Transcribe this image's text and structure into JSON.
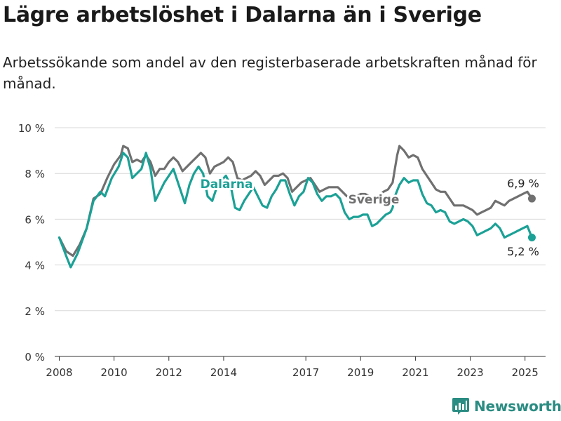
{
  "header": {
    "title": "Lägre arbetslöshet i Dalarna än i Sverige",
    "subtitle": "Arbetssökande som andel av den registerbaserade arbetskraften månad för månad."
  },
  "brand": {
    "name": "Newsworthy",
    "icon": "bar-chart-logo-icon",
    "color": "#2a8c82"
  },
  "chart_data": {
    "type": "line",
    "x_type": "date",
    "ylim": [
      0,
      10
    ],
    "xlim": [
      "2007-11",
      "2025-10"
    ],
    "y_ticks": [
      0,
      2,
      4,
      6,
      8,
      10
    ],
    "y_tick_labels": [
      "0 %",
      "2 %",
      "4 %",
      "6 %",
      "8 %",
      "10 %"
    ],
    "x_ticks": [
      "2008",
      "2010",
      "2012",
      "2014",
      "2017",
      "2019",
      "2021",
      "2023",
      "2025"
    ],
    "grid": "horizontal",
    "series": [
      {
        "name": "Sverige",
        "color": "#707070",
        "label_text": "Sverige",
        "end_label": "6,9 %",
        "points": [
          [
            "2008-01",
            5.2
          ],
          [
            "2008-04",
            4.6
          ],
          [
            "2008-07",
            4.4
          ],
          [
            "2008-10",
            4.9
          ],
          [
            "2009-01",
            5.6
          ],
          [
            "2009-04",
            6.9
          ],
          [
            "2009-07",
            7.1
          ],
          [
            "2009-10",
            7.8
          ],
          [
            "2010-01",
            8.4
          ],
          [
            "2010-04",
            8.8
          ],
          [
            "2010-05",
            9.2
          ],
          [
            "2010-07",
            9.1
          ],
          [
            "2010-09",
            8.5
          ],
          [
            "2010-11",
            8.6
          ],
          [
            "2011-01",
            8.5
          ],
          [
            "2011-03",
            8.8
          ],
          [
            "2011-05",
            8.5
          ],
          [
            "2011-07",
            7.9
          ],
          [
            "2011-09",
            8.2
          ],
          [
            "2011-11",
            8.2
          ],
          [
            "2012-01",
            8.5
          ],
          [
            "2012-03",
            8.7
          ],
          [
            "2012-05",
            8.5
          ],
          [
            "2012-07",
            8.1
          ],
          [
            "2012-09",
            8.3
          ],
          [
            "2012-11",
            8.5
          ],
          [
            "2013-01",
            8.7
          ],
          [
            "2013-03",
            8.9
          ],
          [
            "2013-05",
            8.7
          ],
          [
            "2013-07",
            8.0
          ],
          [
            "2013-09",
            8.3
          ],
          [
            "2013-11",
            8.4
          ],
          [
            "2014-01",
            8.5
          ],
          [
            "2014-03",
            8.7
          ],
          [
            "2014-05",
            8.5
          ],
          [
            "2014-07",
            7.8
          ],
          [
            "2014-09",
            7.7
          ],
          [
            "2014-11",
            7.8
          ],
          [
            "2015-01",
            7.9
          ],
          [
            "2015-03",
            8.1
          ],
          [
            "2015-05",
            7.9
          ],
          [
            "2015-07",
            7.5
          ],
          [
            "2015-09",
            7.7
          ],
          [
            "2015-11",
            7.9
          ],
          [
            "2016-01",
            7.9
          ],
          [
            "2016-03",
            8.0
          ],
          [
            "2016-05",
            7.8
          ],
          [
            "2016-07",
            7.2
          ],
          [
            "2016-09",
            7.4
          ],
          [
            "2016-11",
            7.6
          ],
          [
            "2017-01",
            7.7
          ],
          [
            "2017-03",
            7.8
          ],
          [
            "2017-05",
            7.5
          ],
          [
            "2017-07",
            7.2
          ],
          [
            "2017-09",
            7.3
          ],
          [
            "2017-11",
            7.4
          ],
          [
            "2018-01",
            7.4
          ],
          [
            "2018-03",
            7.4
          ],
          [
            "2018-05",
            7.2
          ],
          [
            "2018-07",
            7.0
          ],
          [
            "2018-09",
            7.0
          ],
          [
            "2018-11",
            7.0
          ],
          [
            "2019-01",
            7.1
          ],
          [
            "2019-03",
            7.1
          ],
          [
            "2019-05",
            7.0
          ],
          [
            "2019-07",
            6.9
          ],
          [
            "2019-09",
            7.0
          ],
          [
            "2019-11",
            7.2
          ],
          [
            "2020-01",
            7.3
          ],
          [
            "2020-03",
            7.6
          ],
          [
            "2020-04",
            8.2
          ],
          [
            "2020-05",
            8.8
          ],
          [
            "2020-06",
            9.2
          ],
          [
            "2020-08",
            9.0
          ],
          [
            "2020-10",
            8.7
          ],
          [
            "2020-12",
            8.8
          ],
          [
            "2021-02",
            8.7
          ],
          [
            "2021-04",
            8.2
          ],
          [
            "2021-06",
            7.9
          ],
          [
            "2021-08",
            7.6
          ],
          [
            "2021-10",
            7.3
          ],
          [
            "2021-12",
            7.2
          ],
          [
            "2022-02",
            7.2
          ],
          [
            "2022-04",
            6.9
          ],
          [
            "2022-06",
            6.6
          ],
          [
            "2022-08",
            6.6
          ],
          [
            "2022-10",
            6.6
          ],
          [
            "2022-12",
            6.5
          ],
          [
            "2023-02",
            6.4
          ],
          [
            "2023-04",
            6.2
          ],
          [
            "2023-06",
            6.3
          ],
          [
            "2023-08",
            6.4
          ],
          [
            "2023-10",
            6.5
          ],
          [
            "2023-12",
            6.8
          ],
          [
            "2024-02",
            6.7
          ],
          [
            "2024-04",
            6.6
          ],
          [
            "2024-06",
            6.8
          ],
          [
            "2024-08",
            6.9
          ],
          [
            "2024-10",
            7.0
          ],
          [
            "2024-12",
            7.1
          ],
          [
            "2025-02",
            7.2
          ],
          [
            "2025-04",
            6.9
          ]
        ]
      },
      {
        "name": "Dalarna",
        "color": "#1ba196",
        "label_text": "Dalarna",
        "end_label": "5,2 %",
        "points": [
          [
            "2008-01",
            5.2
          ],
          [
            "2008-04",
            4.4
          ],
          [
            "2008-06",
            3.9
          ],
          [
            "2008-09",
            4.5
          ],
          [
            "2009-01",
            5.6
          ],
          [
            "2009-04",
            6.8
          ],
          [
            "2009-07",
            7.2
          ],
          [
            "2009-09",
            7.0
          ],
          [
            "2009-12",
            7.8
          ],
          [
            "2010-03",
            8.3
          ],
          [
            "2010-05",
            8.9
          ],
          [
            "2010-07",
            8.7
          ],
          [
            "2010-09",
            7.8
          ],
          [
            "2010-11",
            8.0
          ],
          [
            "2011-01",
            8.2
          ],
          [
            "2011-03",
            8.9
          ],
          [
            "2011-05",
            8.2
          ],
          [
            "2011-07",
            6.8
          ],
          [
            "2011-09",
            7.2
          ],
          [
            "2011-11",
            7.6
          ],
          [
            "2012-01",
            7.9
          ],
          [
            "2012-03",
            8.2
          ],
          [
            "2012-05",
            7.6
          ],
          [
            "2012-08",
            6.7
          ],
          [
            "2012-10",
            7.5
          ],
          [
            "2012-12",
            8.0
          ],
          [
            "2013-02",
            8.3
          ],
          [
            "2013-04",
            8.0
          ],
          [
            "2013-06",
            7.0
          ],
          [
            "2013-08",
            6.8
          ],
          [
            "2013-10",
            7.4
          ],
          [
            "2013-12",
            7.7
          ],
          [
            "2014-02",
            7.9
          ],
          [
            "2014-04",
            7.5
          ],
          [
            "2014-06",
            6.5
          ],
          [
            "2014-08",
            6.4
          ],
          [
            "2014-10",
            6.8
          ],
          [
            "2014-12",
            7.1
          ],
          [
            "2015-02",
            7.4
          ],
          [
            "2015-04",
            7.0
          ],
          [
            "2015-06",
            6.6
          ],
          [
            "2015-08",
            6.5
          ],
          [
            "2015-10",
            7.0
          ],
          [
            "2015-12",
            7.3
          ],
          [
            "2016-02",
            7.7
          ],
          [
            "2016-04",
            7.7
          ],
          [
            "2016-06",
            7.1
          ],
          [
            "2016-08",
            6.6
          ],
          [
            "2016-10",
            7.0
          ],
          [
            "2016-12",
            7.2
          ],
          [
            "2017-02",
            7.8
          ],
          [
            "2017-04",
            7.6
          ],
          [
            "2017-06",
            7.1
          ],
          [
            "2017-08",
            6.8
          ],
          [
            "2017-10",
            7.0
          ],
          [
            "2017-12",
            7.0
          ],
          [
            "2018-02",
            7.1
          ],
          [
            "2018-04",
            6.9
          ],
          [
            "2018-06",
            6.3
          ],
          [
            "2018-08",
            6.0
          ],
          [
            "2018-10",
            6.1
          ],
          [
            "2018-12",
            6.1
          ],
          [
            "2019-02",
            6.2
          ],
          [
            "2019-04",
            6.2
          ],
          [
            "2019-06",
            5.7
          ],
          [
            "2019-08",
            5.8
          ],
          [
            "2019-10",
            6.0
          ],
          [
            "2019-12",
            6.2
          ],
          [
            "2020-02",
            6.3
          ],
          [
            "2020-03",
            6.5
          ],
          [
            "2020-04",
            7.0
          ],
          [
            "2020-06",
            7.5
          ],
          [
            "2020-08",
            7.8
          ],
          [
            "2020-10",
            7.6
          ],
          [
            "2020-12",
            7.7
          ],
          [
            "2021-02",
            7.7
          ],
          [
            "2021-04",
            7.1
          ],
          [
            "2021-06",
            6.7
          ],
          [
            "2021-08",
            6.6
          ],
          [
            "2021-10",
            6.3
          ],
          [
            "2021-12",
            6.4
          ],
          [
            "2022-02",
            6.3
          ],
          [
            "2022-04",
            5.9
          ],
          [
            "2022-06",
            5.8
          ],
          [
            "2022-08",
            5.9
          ],
          [
            "2022-10",
            6.0
          ],
          [
            "2022-12",
            5.9
          ],
          [
            "2023-02",
            5.7
          ],
          [
            "2023-04",
            5.3
          ],
          [
            "2023-06",
            5.4
          ],
          [
            "2023-08",
            5.5
          ],
          [
            "2023-10",
            5.6
          ],
          [
            "2023-12",
            5.8
          ],
          [
            "2024-02",
            5.6
          ],
          [
            "2024-04",
            5.2
          ],
          [
            "2024-06",
            5.3
          ],
          [
            "2024-08",
            5.4
          ],
          [
            "2024-10",
            5.5
          ],
          [
            "2024-12",
            5.6
          ],
          [
            "2025-02",
            5.7
          ],
          [
            "2025-04",
            5.2
          ]
        ]
      }
    ]
  }
}
